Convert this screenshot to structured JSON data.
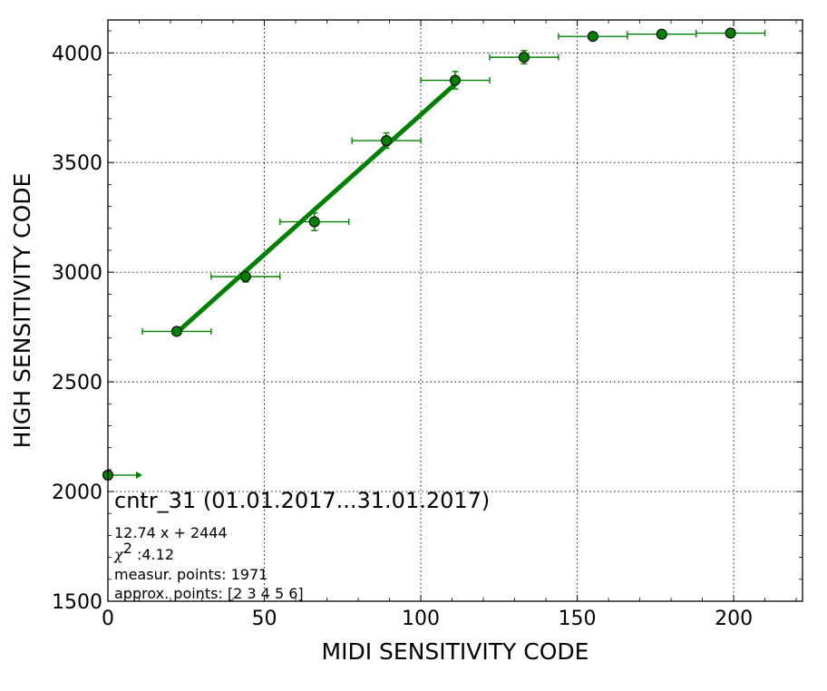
{
  "chart_data": {
    "type": "scatter",
    "xlabel": "MIDI SENSITIVITY CODE",
    "ylabel": "HIGH SENSITIVITY CODE",
    "xlim": [
      0,
      222
    ],
    "ylim": [
      1500,
      4150
    ],
    "x_ticks": [
      0,
      50,
      100,
      150,
      200
    ],
    "x_tick_labels": [
      "0",
      "50",
      "100",
      "150",
      "200"
    ],
    "y_ticks": [
      1500,
      2000,
      2500,
      3000,
      3500,
      4000
    ],
    "y_tick_labels": [
      "1500",
      "2000",
      "2500",
      "3000",
      "3500",
      "4000"
    ],
    "grid": true,
    "color": "#008000",
    "points": [
      {
        "x": 0,
        "y": 2075,
        "xerr": 11,
        "yerr": 0
      },
      {
        "x": 22,
        "y": 2730,
        "xerr": 11,
        "yerr": 10
      },
      {
        "x": 44,
        "y": 2980,
        "xerr": 11,
        "yerr": 25
      },
      {
        "x": 66,
        "y": 3230,
        "xerr": 11,
        "yerr": 40
      },
      {
        "x": 89,
        "y": 3600,
        "xerr": 11,
        "yerr": 35
      },
      {
        "x": 111,
        "y": 3875,
        "xerr": 11,
        "yerr": 40
      },
      {
        "x": 133,
        "y": 3980,
        "xerr": 11,
        "yerr": 30
      },
      {
        "x": 155,
        "y": 4075,
        "xerr": 11,
        "yerr": 10
      },
      {
        "x": 177,
        "y": 4085,
        "xerr": 11,
        "yerr": 8
      },
      {
        "x": 199,
        "y": 4090,
        "xerr": 11,
        "yerr": 8
      }
    ],
    "fit_line": {
      "slope": 12.74,
      "intercept": 2444,
      "x_start": 22,
      "x_end": 111
    },
    "annotation": {
      "title": "cntr_31 (01.01.2017...31.01.2017)",
      "equation": "12.74 x + 2444",
      "chi_symbol": "χ",
      "chi_exp": "2",
      "chi_value": " :4.12",
      "measur_points": "measur. points: 1971",
      "approx_points": "approx. points: [2 3 4 5 6]"
    }
  }
}
